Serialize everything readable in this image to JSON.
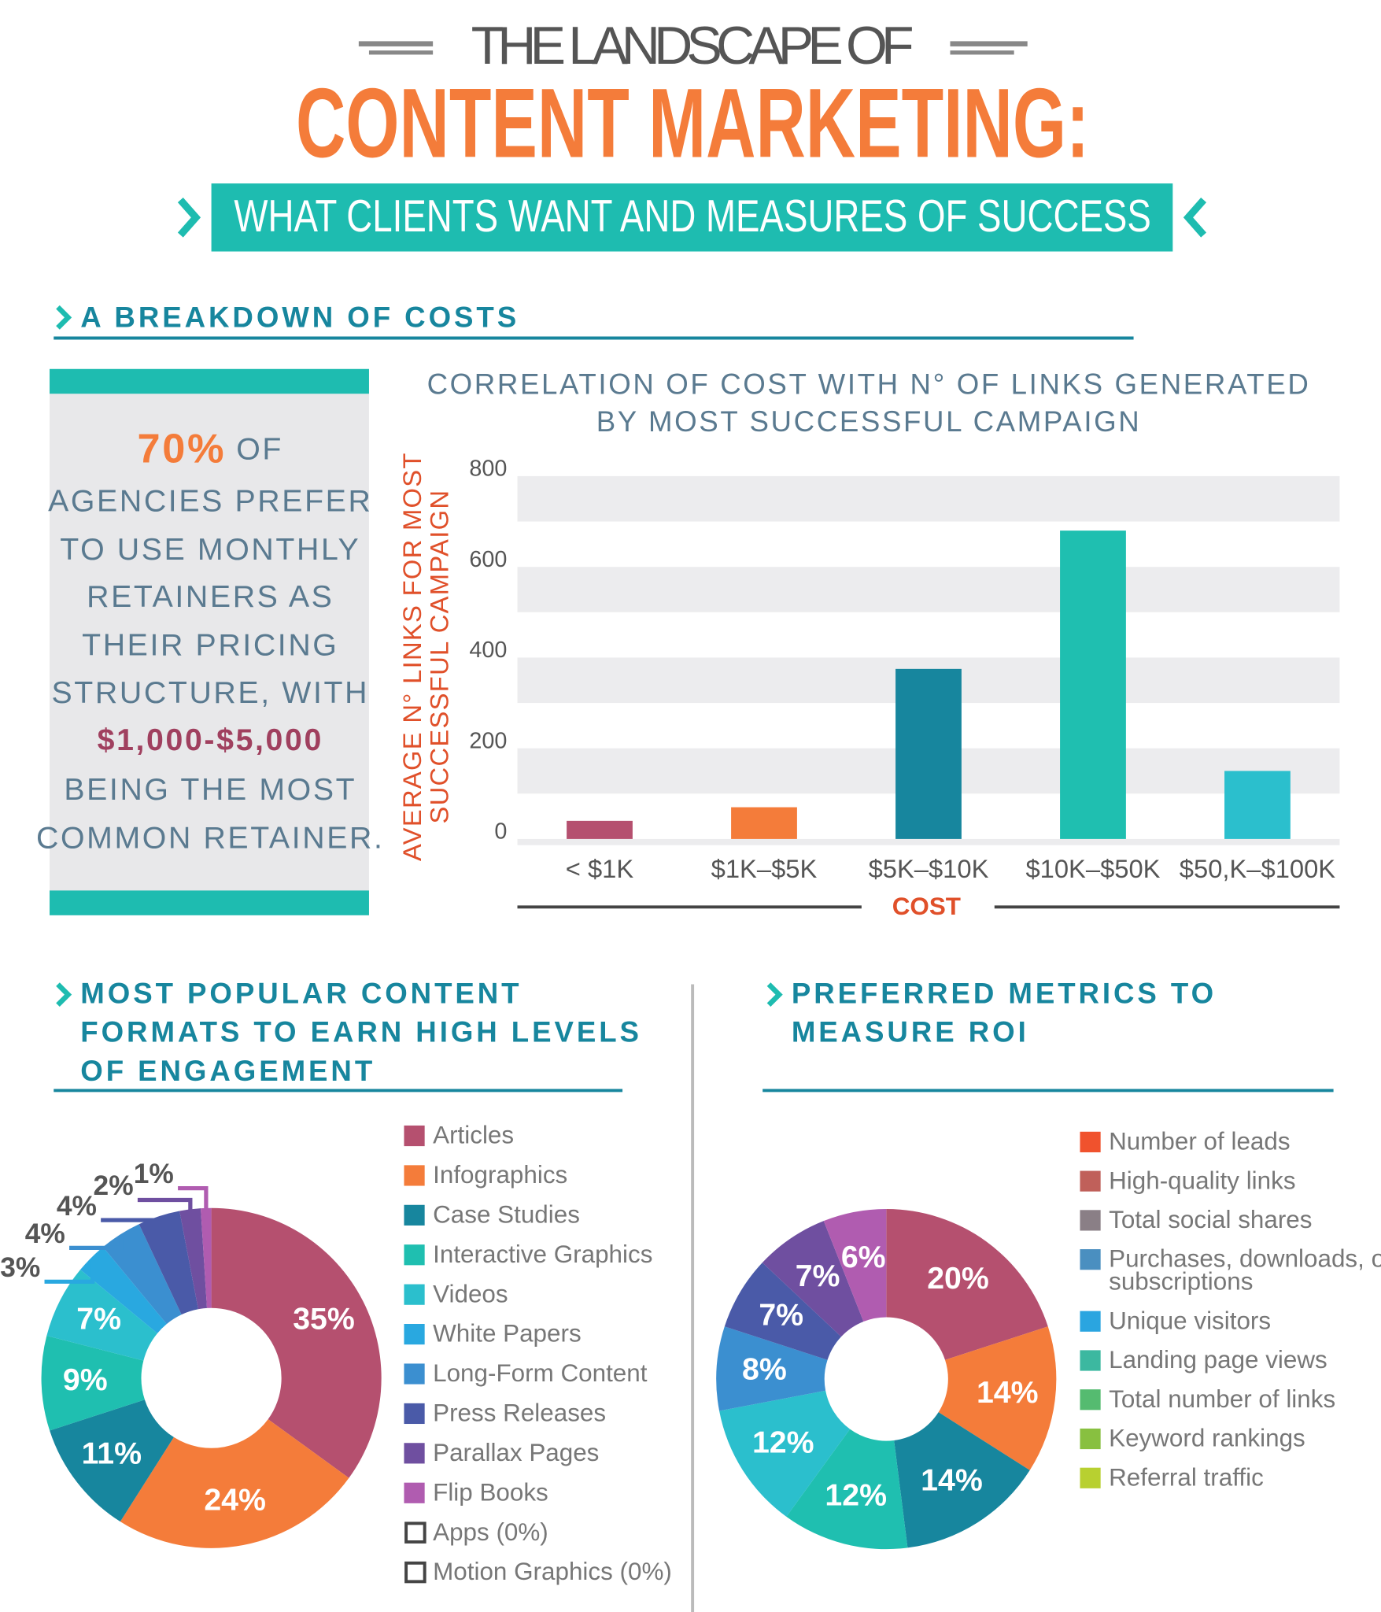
{
  "header": {
    "title_top": "THE LANDSCAPE OF",
    "title_main": "CONTENT MARKETING:",
    "subtitle": "WHAT CLIENTS WANT AND MEASURES OF SUCCESS"
  },
  "costs_section": {
    "heading": "A BREAKDOWN OF COSTS",
    "callout": {
      "stat": "70%",
      "stat_suffix": "OF",
      "lines": [
        "AGENCIES PREFER",
        "TO USE MONTHLY",
        "RETAINERS AS",
        "THEIR PRICING",
        "STRUCTURE, WITH"
      ],
      "highlight": "$1,000-$5,000",
      "closing": [
        "BEING THE MOST",
        "COMMON RETAINER."
      ]
    }
  },
  "chart_data": [
    {
      "type": "bar",
      "title": [
        "CORRELATION OF COST WITH N° OF LINKS GENERATED",
        "BY MOST SUCCESSFUL CAMPAIGN"
      ],
      "y_label": [
        "AVERAGE N° LINKS FOR MOST",
        "SUCCESSFUL CAMPAIGN"
      ],
      "x_label": "COST",
      "categories": [
        "< $1K",
        "$1K–$5K",
        "$5K–$10K",
        "$10K–$50K",
        "$50,K–$100K"
      ],
      "values": [
        40,
        70,
        375,
        680,
        150
      ],
      "colors": [
        "#b5506f",
        "#f47c3a",
        "#17869e",
        "#1fbfb0",
        "#2bbfcd"
      ],
      "ylim": [
        0,
        800
      ],
      "yticks": [
        0,
        200,
        400,
        600,
        800
      ],
      "grid": true
    },
    {
      "type": "donut",
      "title": [
        "MOST POPULAR CONTENT",
        "FORMATS TO EARN HIGH LEVELS",
        "OF ENGAGEMENT"
      ],
      "categories": [
        "Articles",
        "Infographics",
        "Case Studies",
        "Interactive Graphics",
        "Videos",
        "White Papers",
        "Long-Form Content",
        "Press Releases",
        "Parallax Pages",
        "Flip Books",
        "Apps (0%)",
        "Motion Graphics (0%)"
      ],
      "values": [
        35,
        24,
        11,
        9,
        7,
        3,
        4,
        4,
        2,
        1,
        0,
        0
      ],
      "value_labels": [
        "35%",
        "24%",
        "11%",
        "9%",
        "7%",
        "3%",
        "4%",
        "4%",
        "2%",
        "1%",
        null,
        null
      ],
      "colors": [
        "#b5506f",
        "#f47c3a",
        "#17869e",
        "#1fbfb0",
        "#2bbfcd",
        "#29a8e0",
        "#3b8fd0",
        "#4a5aa8",
        "#6f4fa0",
        "#b05cb0",
        "#ffffff",
        "#ffffff"
      ]
    },
    {
      "type": "donut",
      "title": [
        "PREFERRED METRICS TO",
        "MEASURE ROI"
      ],
      "categories": [
        "Number of leads",
        "High-quality links",
        "Total social shares",
        "Purchases, downloads, or subscriptions",
        "Unique visitors",
        "Landing page views",
        "Total number of links",
        "Keyword rankings",
        "Referral traffic"
      ],
      "values": [
        20,
        14,
        14,
        12,
        12,
        8,
        7,
        7,
        6
      ],
      "value_labels": [
        "20%",
        "14%",
        "14%",
        "12%",
        "12%",
        "8%",
        "7%",
        "7%",
        "6%"
      ],
      "colors": [
        "#b5506f",
        "#f47c3a",
        "#17869e",
        "#1fbfb0",
        "#2bbfcd",
        "#3b8fd0",
        "#4a5aa8",
        "#6f4fa0",
        "#b05cb0"
      ],
      "legend_colors": [
        "#f0522d",
        "#c0605a",
        "#8a7f86",
        "#4a8fc0",
        "#2aa5e0",
        "#3cb8a0",
        "#55bb70",
        "#88c040",
        "#b8d030"
      ]
    }
  ]
}
